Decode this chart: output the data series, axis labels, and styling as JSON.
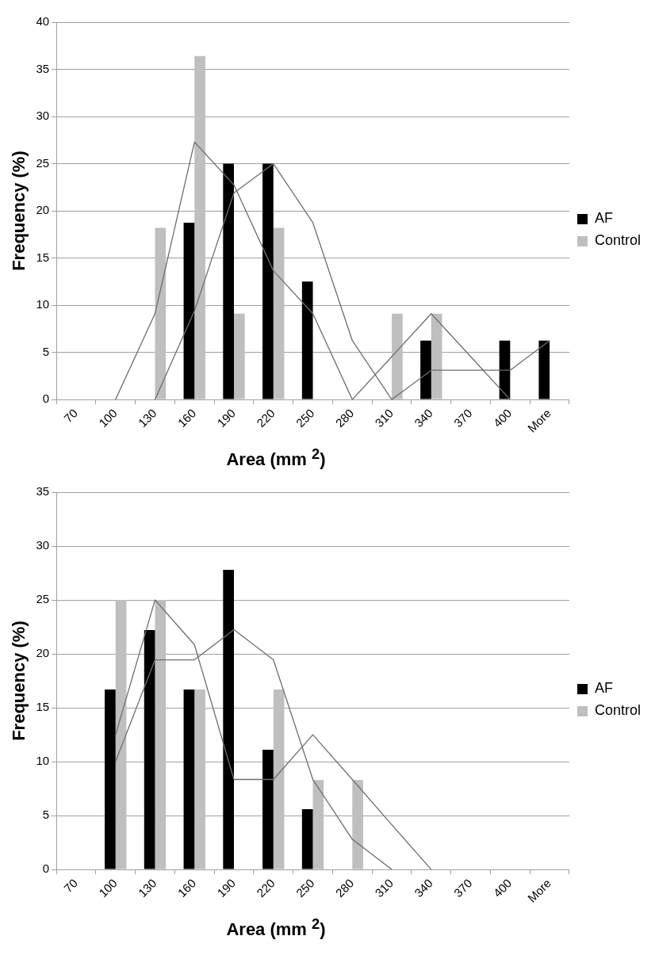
{
  "chart_data": [
    {
      "type": "bar",
      "categories": [
        "70",
        "100",
        "130",
        "160",
        "190",
        "220",
        "250",
        "280",
        "310",
        "340",
        "370",
        "400",
        "More"
      ],
      "series": [
        {
          "name": "AF",
          "color": "#000000",
          "values": [
            0,
            0,
            0,
            18.75,
            25,
            25,
            12.5,
            0,
            0,
            6.25,
            0,
            6.25,
            6.25
          ]
        },
        {
          "name": "Control",
          "color": "#bfbfbf",
          "values": [
            0,
            0,
            18.2,
            36.4,
            9.1,
            18.2,
            0,
            0,
            9.1,
            9.1,
            0,
            0,
            0
          ]
        },
        {
          "type": "line",
          "color": "#6e6e6e",
          "values": [
            null,
            null,
            0,
            9.4,
            21.9,
            25,
            18.75,
            6.25,
            0,
            3.1,
            3.1,
            3.1,
            6.25
          ]
        },
        {
          "type": "line",
          "color": "#6e6e6e",
          "values": [
            null,
            0,
            9.1,
            27.3,
            22.75,
            13.65,
            9.1,
            0,
            4.55,
            9.1,
            4.55,
            0,
            null
          ]
        }
      ],
      "ylabel": "Frequency (%)",
      "xlabel": "Area (mm $^{2}$)",
      "ylim": [
        0,
        40
      ],
      "yticks": [
        0,
        5,
        10,
        15,
        20,
        25,
        30,
        35,
        40
      ],
      "grid": "y",
      "legend": "right"
    },
    {
      "type": "bar",
      "categories": [
        "70",
        "100",
        "130",
        "160",
        "190",
        "220",
        "250",
        "280",
        "310",
        "340",
        "370",
        "400",
        "More"
      ],
      "series": [
        {
          "name": "AF",
          "color": "#000000",
          "values": [
            0,
            16.7,
            22.2,
            16.7,
            27.8,
            11.1,
            5.6,
            0,
            0,
            0,
            0,
            0,
            0
          ]
        },
        {
          "name": "Control",
          "color": "#bfbfbf",
          "values": [
            0,
            25,
            25,
            16.7,
            0,
            16.7,
            8.3,
            8.3,
            0,
            0,
            0,
            0,
            0
          ]
        },
        {
          "type": "line",
          "color": "#6e6e6e",
          "values": [
            null,
            10,
            19.45,
            19.45,
            22.25,
            19.45,
            8.35,
            2.8,
            0,
            null,
            null,
            null,
            null
          ]
        },
        {
          "type": "line",
          "color": "#6e6e6e",
          "values": [
            null,
            12.5,
            25,
            20.85,
            8.35,
            8.35,
            12.5,
            8.35,
            4.15,
            0,
            null,
            null,
            null
          ]
        }
      ],
      "ylabel": "Frequency (%)",
      "xlabel": "Area (mm $^{2}$)",
      "ylim": [
        0,
        35
      ],
      "yticks": [
        0,
        5,
        10,
        15,
        20,
        25,
        30,
        35
      ],
      "grid": "y",
      "legend": "right"
    }
  ]
}
